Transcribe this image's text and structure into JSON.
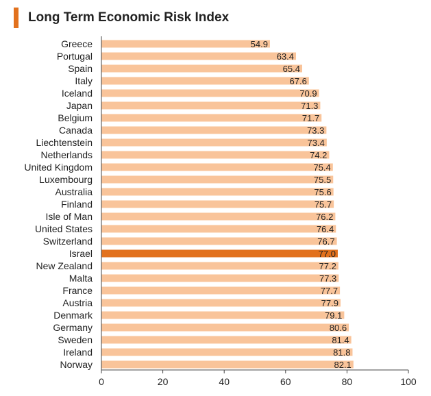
{
  "header": {
    "title": "Long Term Economic Risk Index"
  },
  "colors": {
    "accent": "#E2711D",
    "bar": "#F9C49A",
    "highlight_bar": "#E2711D",
    "text": "#222222",
    "axis": "#444444"
  },
  "chart_data": {
    "type": "bar",
    "orientation": "horizontal",
    "title": "Long Term Economic Risk Index",
    "xlabel": "",
    "ylabel": "",
    "xlim": [
      0,
      100
    ],
    "xticks": [
      0,
      20,
      40,
      60,
      80,
      100
    ],
    "grid": false,
    "legend": "none",
    "highlight": "Israel",
    "categories": [
      "Greece",
      "Portugal",
      "Spain",
      "Italy",
      "Iceland",
      "Japan",
      "Belgium",
      "Canada",
      "Liechtenstein",
      "Netherlands",
      "United Kingdom",
      "Luxembourg",
      "Australia",
      "Finland",
      "Isle of Man",
      "United States",
      "Switzerland",
      "Israel",
      "New Zealand",
      "Malta",
      "France",
      "Austria",
      "Denmark",
      "Germany",
      "Sweden",
      "Ireland",
      "Norway"
    ],
    "values": [
      54.9,
      63.4,
      65.4,
      67.6,
      70.9,
      71.3,
      71.7,
      73.3,
      73.4,
      74.2,
      75.4,
      75.5,
      75.6,
      75.7,
      76.2,
      76.4,
      76.7,
      77.0,
      77.2,
      77.3,
      77.7,
      77.9,
      79.1,
      80.6,
      81.4,
      81.8,
      82.1
    ],
    "value_labels": [
      "54.9",
      "63.4",
      "65.4",
      "67.6",
      "70.9",
      "71.3",
      "71.7",
      "73.3",
      "73.4",
      "74.2",
      "75.4",
      "75.5",
      "75.6",
      "75.7",
      "76.2",
      "76.4",
      "76.7",
      "77.0",
      "77.2",
      "77.3",
      "77.7",
      "77.9",
      "79.1",
      "80.6",
      "81.4",
      "81.8",
      "82.1"
    ]
  }
}
